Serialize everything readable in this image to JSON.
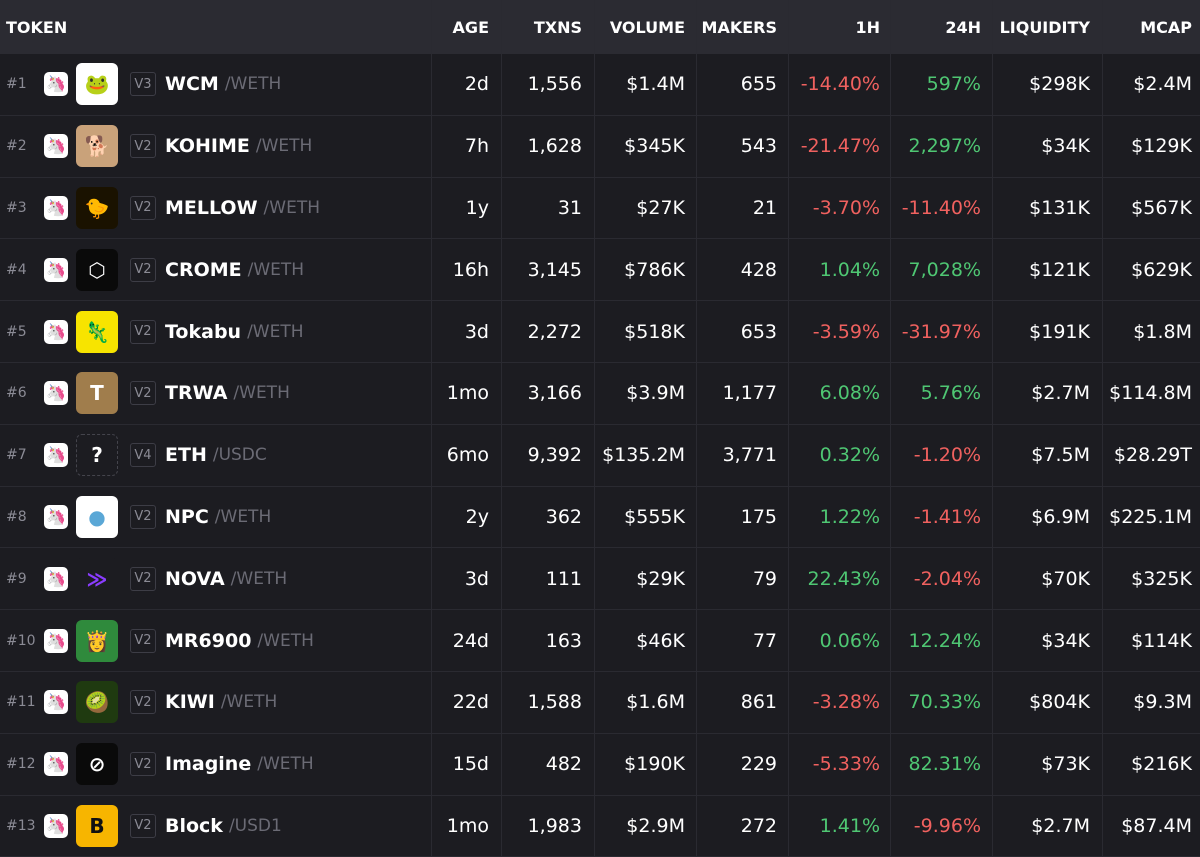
{
  "header": {
    "token": "TOKEN",
    "age": "AGE",
    "txns": "TXNS",
    "volume": "VOLUME",
    "makers": "MAKERS",
    "h1": "1H",
    "h24": "24H",
    "liquidity": "LIQUIDITY",
    "mcap": "MCAP"
  },
  "colors": {
    "positive": "#4fc773",
    "negative": "#f0615f",
    "dex_brand": "#ff1ea0"
  },
  "rows": [
    {
      "rank": "#1",
      "version": "V3",
      "symbol": "WCM",
      "quote": "/WETH",
      "age": "2d",
      "txns": "1,556",
      "volume": "$1.4M",
      "makers": "655",
      "h1": "-14.40%",
      "h24": "597%",
      "liquidity": "$298K",
      "mcap": "$2.4M",
      "logo_icon": "pepe-frog-icon",
      "logo_bg": "#ffffff",
      "logo_glyph": "🐸"
    },
    {
      "rank": "#2",
      "version": "V2",
      "symbol": "KOHIME",
      "quote": "/WETH",
      "age": "7h",
      "txns": "1,628",
      "volume": "$345K",
      "makers": "543",
      "h1": "-21.47%",
      "h24": "2,297%",
      "liquidity": "$34K",
      "mcap": "$129K",
      "logo_icon": "shiba-dog-icon",
      "logo_bg": "#c9a27a",
      "logo_glyph": "🐕"
    },
    {
      "rank": "#3",
      "version": "V2",
      "symbol": "MELLOW",
      "quote": "/WETH",
      "age": "1y",
      "txns": "31",
      "volume": "$27K",
      "makers": "21",
      "h1": "-3.70%",
      "h24": "-11.40%",
      "liquidity": "$131K",
      "mcap": "$567K",
      "logo_icon": "mellow-duck-icon",
      "logo_bg": "#1a1200",
      "logo_glyph": "🐤"
    },
    {
      "rank": "#4",
      "version": "V2",
      "symbol": "CROME",
      "quote": "/WETH",
      "age": "16h",
      "txns": "3,145",
      "volume": "$786K",
      "makers": "428",
      "h1": "1.04%",
      "h24": "7,028%",
      "liquidity": "$121K",
      "mcap": "$629K",
      "logo_icon": "crome-hexagon-icon",
      "logo_bg": "#0a0a0a",
      "logo_glyph": "⬡"
    },
    {
      "rank": "#5",
      "version": "V2",
      "symbol": "Tokabu",
      "quote": "/WETH",
      "age": "3d",
      "txns": "2,272",
      "volume": "$518K",
      "makers": "653",
      "h1": "-3.59%",
      "h24": "-31.97%",
      "liquidity": "$191K",
      "mcap": "$1.8M",
      "logo_icon": "tokabu-character-icon",
      "logo_bg": "#f7e400",
      "logo_glyph": "🦎"
    },
    {
      "rank": "#6",
      "version": "V2",
      "symbol": "TRWA",
      "quote": "/WETH",
      "age": "1mo",
      "txns": "3,166",
      "volume": "$3.9M",
      "makers": "1,177",
      "h1": "6.08%",
      "h24": "5.76%",
      "liquidity": "$2.7M",
      "mcap": "$114.8M",
      "logo_icon": "trwa-t-logo-icon",
      "logo_bg": "#a07d4c",
      "logo_glyph": "T"
    },
    {
      "rank": "#7",
      "version": "V4",
      "symbol": "ETH",
      "quote": "/USDC",
      "age": "6mo",
      "txns": "9,392",
      "volume": "$135.2M",
      "makers": "3,771",
      "h1": "0.32%",
      "h24": "-1.20%",
      "liquidity": "$7.5M",
      "mcap": "$28.29T",
      "logo_icon": "unknown-token-icon",
      "logo_bg": "#1c1c21",
      "logo_glyph": "?"
    },
    {
      "rank": "#8",
      "version": "V2",
      "symbol": "NPC",
      "quote": "/WETH",
      "age": "2y",
      "txns": "362",
      "volume": "$555K",
      "makers": "175",
      "h1": "1.22%",
      "h24": "-1.41%",
      "liquidity": "$6.9M",
      "mcap": "$225.1M",
      "logo_icon": "npc-face-icon",
      "logo_bg": "#ffffff",
      "logo_glyph": "●"
    },
    {
      "rank": "#9",
      "version": "V2",
      "symbol": "NOVA",
      "quote": "/WETH",
      "age": "3d",
      "txns": "111",
      "volume": "$29K",
      "makers": "79",
      "h1": "22.43%",
      "h24": "-2.04%",
      "liquidity": "$70K",
      "mcap": "$325K",
      "logo_icon": "nova-chevron-icon",
      "logo_bg": "#1c1c21",
      "logo_glyph": "≫"
    },
    {
      "rank": "#10",
      "version": "V2",
      "symbol": "MR6900",
      "quote": "/WETH",
      "age": "24d",
      "txns": "163",
      "volume": "$46K",
      "makers": "77",
      "h1": "0.06%",
      "h24": "12.24%",
      "liquidity": "$34K",
      "mcap": "$114K",
      "logo_icon": "marie-rose-icon",
      "logo_bg": "#2f8a3c",
      "logo_glyph": "👸"
    },
    {
      "rank": "#11",
      "version": "V2",
      "symbol": "KIWI",
      "quote": "/WETH",
      "age": "22d",
      "txns": "1,588",
      "volume": "$1.6M",
      "makers": "861",
      "h1": "-3.28%",
      "h24": "70.33%",
      "liquidity": "$804K",
      "mcap": "$9.3M",
      "logo_icon": "kiwi-fruit-icon",
      "logo_bg": "#1f3a10",
      "logo_glyph": "🥝"
    },
    {
      "rank": "#12",
      "version": "V2",
      "symbol": "Imagine",
      "quote": "/WETH",
      "age": "15d",
      "txns": "482",
      "volume": "$190K",
      "makers": "229",
      "h1": "-5.33%",
      "h24": "82.31%",
      "liquidity": "$73K",
      "mcap": "$216K",
      "logo_icon": "imagine-slash-icon",
      "logo_bg": "#0a0a0a",
      "logo_glyph": "⊘"
    },
    {
      "rank": "#13",
      "version": "V2",
      "symbol": "Block",
      "quote": "/USD1",
      "age": "1mo",
      "txns": "1,983",
      "volume": "$2.9M",
      "makers": "272",
      "h1": "1.41%",
      "h24": "-9.96%",
      "liquidity": "$2.7M",
      "mcap": "$87.4M",
      "logo_icon": "block-b-icon",
      "logo_bg": "#f7b500",
      "logo_glyph": "B"
    }
  ]
}
